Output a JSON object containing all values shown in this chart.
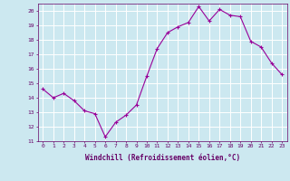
{
  "x": [
    0,
    1,
    2,
    3,
    4,
    5,
    6,
    7,
    8,
    9,
    10,
    11,
    12,
    13,
    14,
    15,
    16,
    17,
    18,
    19,
    20,
    21,
    22,
    23
  ],
  "y": [
    14.6,
    14.0,
    14.3,
    13.8,
    13.1,
    12.9,
    11.3,
    12.3,
    12.8,
    13.5,
    15.5,
    17.4,
    18.5,
    18.9,
    19.2,
    20.3,
    19.3,
    20.1,
    19.7,
    19.6,
    17.9,
    17.5,
    16.4,
    15.6
  ],
  "xlabel": "Windchill (Refroidissement éolien,°C)",
  "ylim": [
    11,
    20.5
  ],
  "xlim": [
    -0.5,
    23.5
  ],
  "yticks": [
    11,
    12,
    13,
    14,
    15,
    16,
    17,
    18,
    19,
    20
  ],
  "xticks": [
    0,
    1,
    2,
    3,
    4,
    5,
    6,
    7,
    8,
    9,
    10,
    11,
    12,
    13,
    14,
    15,
    16,
    17,
    18,
    19,
    20,
    21,
    22,
    23
  ],
  "line_color": "#990099",
  "marker": "+",
  "bg_color": "#cce8f0",
  "grid_color": "#ffffff",
  "label_color": "#660066",
  "tick_color": "#660066",
  "figsize": [
    3.2,
    2.0
  ],
  "dpi": 100
}
